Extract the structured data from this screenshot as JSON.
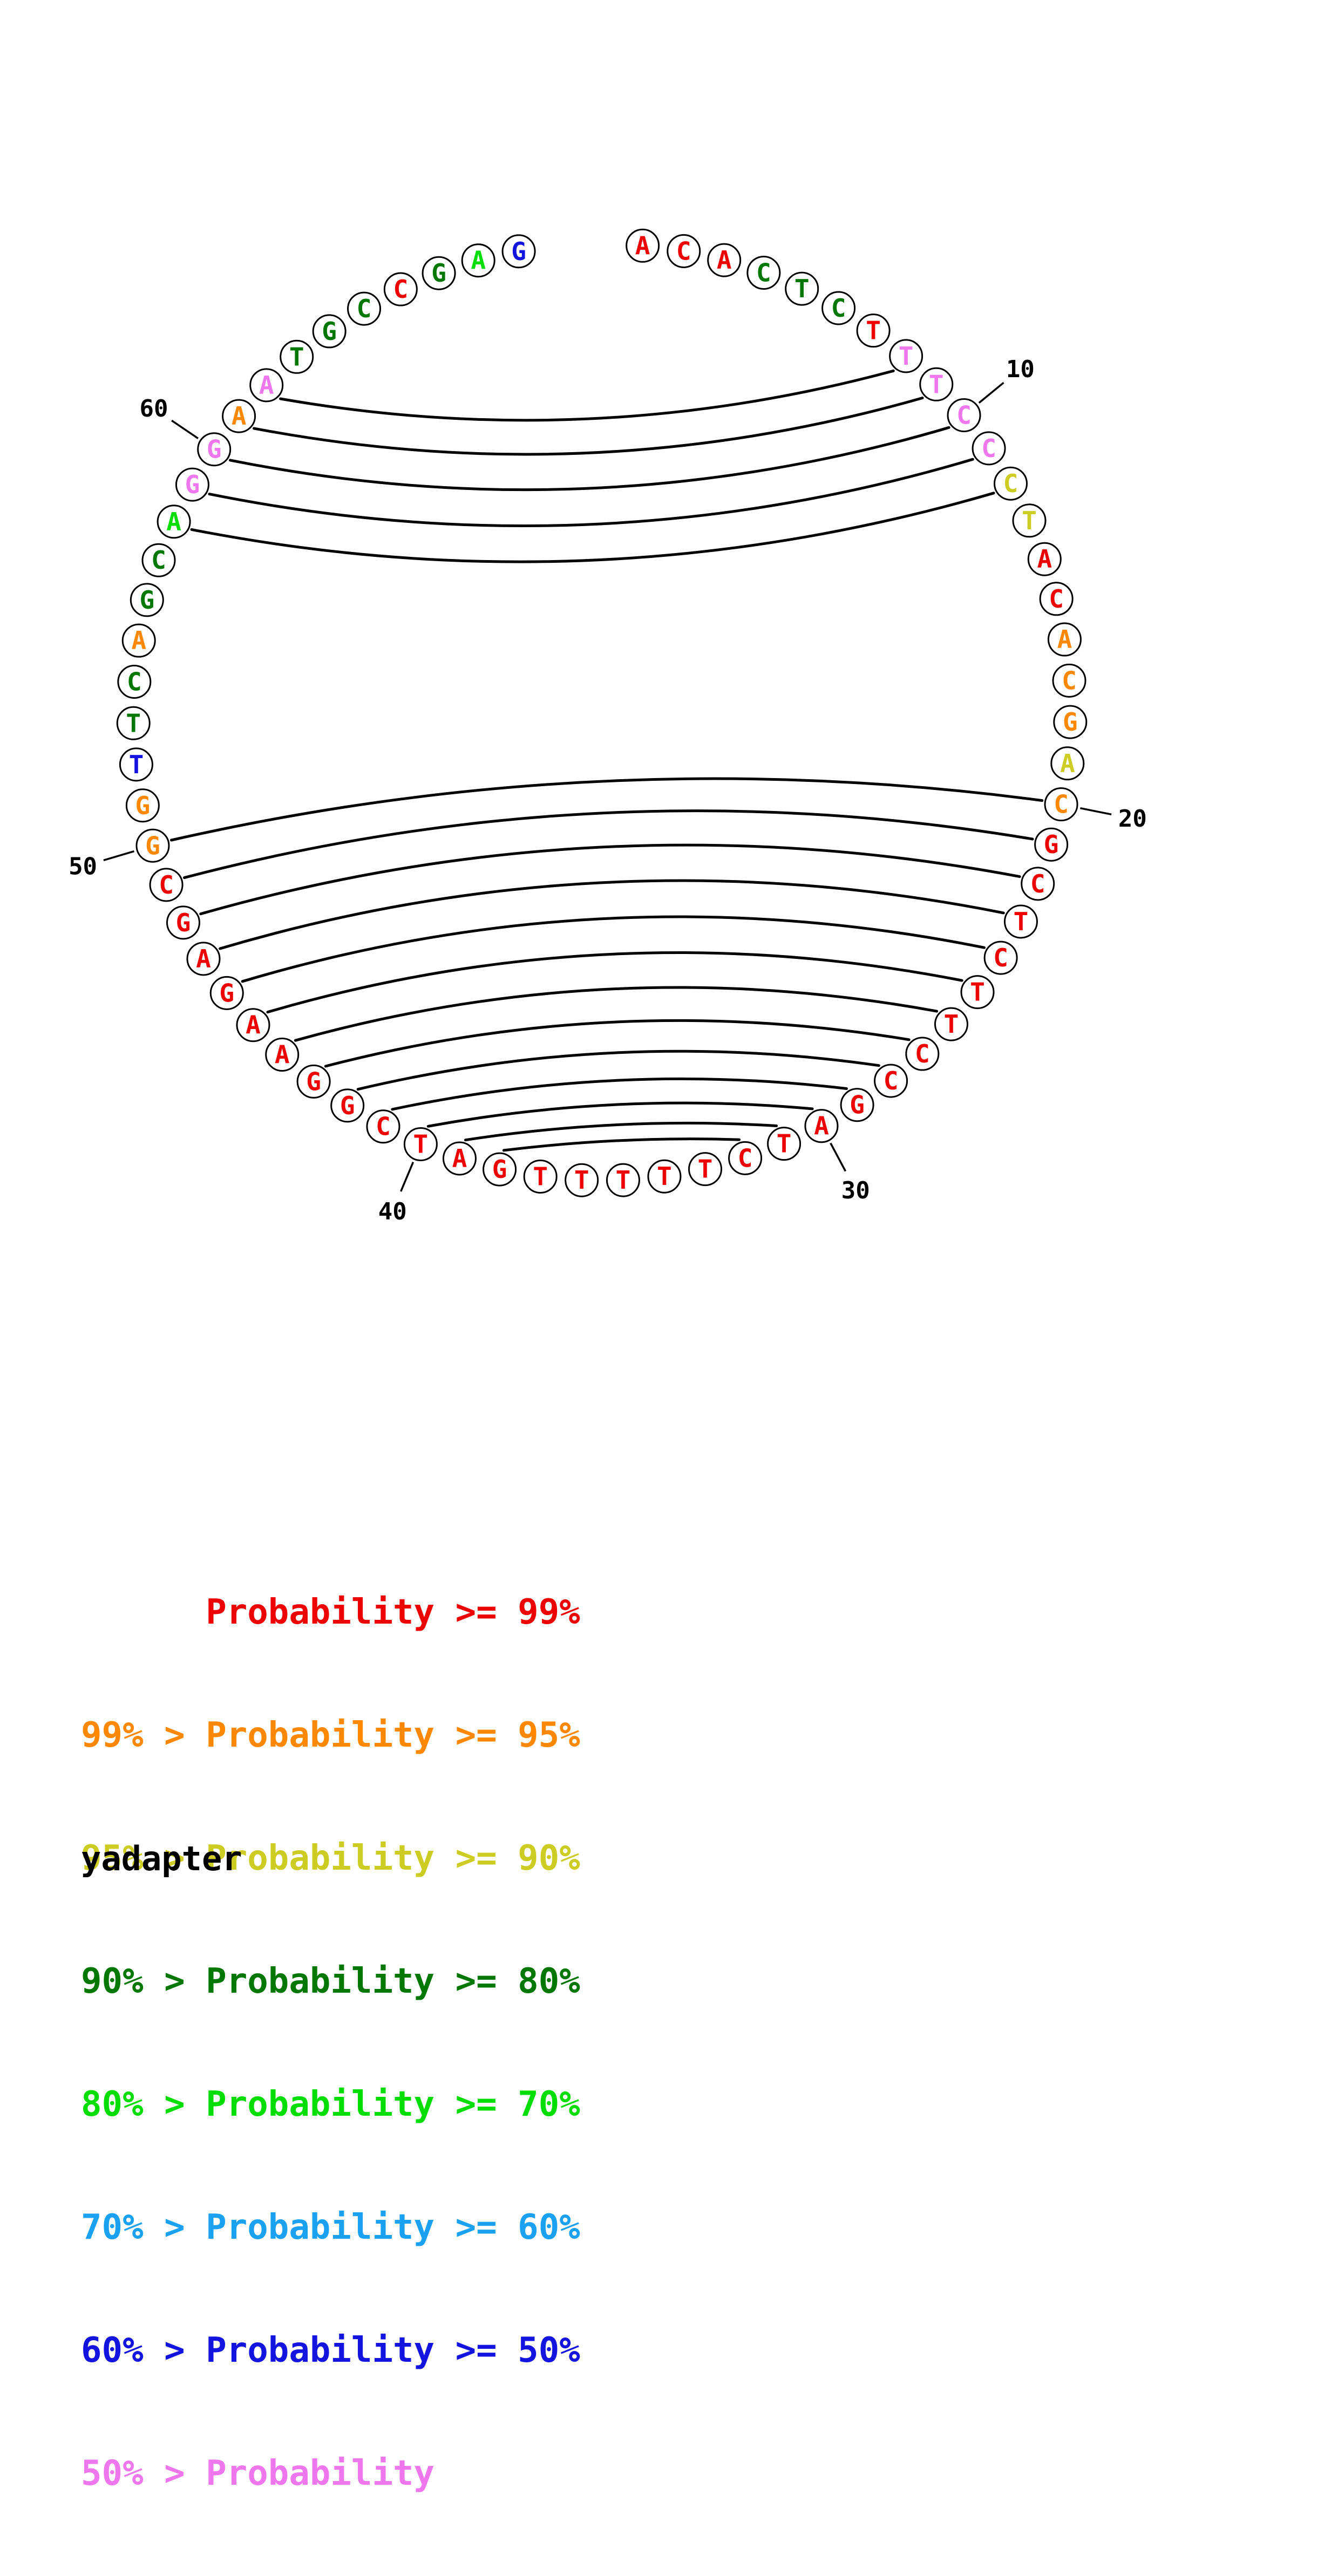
{
  "chart_data": {
    "type": "arc-diagram",
    "title": "yadapter",
    "sequence": "ACACTCTTTCCCTACACGACGCTCTTCCGATCTTTTTGATCGGAAGAGCGGTTCAGCAGGAATGCCGAG",
    "sequence_length": 69,
    "position_labels": [
      10,
      20,
      30,
      40,
      50,
      60
    ],
    "pairs": [
      [
        8,
        62
      ],
      [
        9,
        61
      ],
      [
        10,
        60
      ],
      [
        11,
        59
      ],
      [
        12,
        58
      ],
      [
        20,
        50
      ],
      [
        21,
        49
      ],
      [
        22,
        48
      ],
      [
        23,
        47
      ],
      [
        24,
        46
      ],
      [
        25,
        45
      ],
      [
        26,
        44
      ],
      [
        27,
        43
      ],
      [
        28,
        42
      ],
      [
        29,
        41
      ],
      [
        30,
        40
      ],
      [
        31,
        39
      ],
      [
        32,
        38
      ]
    ],
    "colors": [
      "p99",
      "p99",
      "p99",
      "p80",
      "p80",
      "p80",
      "p99",
      "plow",
      "plow",
      "plow",
      "plow",
      "p90",
      "p90",
      "p99",
      "p99",
      "p95",
      "p95",
      "p95",
      "p90",
      "p95",
      "p99",
      "p99",
      "p99",
      "p99",
      "p99",
      "p99",
      "p99",
      "p99",
      "p99",
      "p99",
      "p99",
      "p99",
      "p99",
      "p99",
      "p99",
      "p99",
      "p99",
      "p99",
      "p99",
      "p99",
      "p99",
      "p99",
      "p99",
      "p99",
      "p99",
      "p99",
      "p99",
      "p99",
      "p99",
      "p95",
      "p95",
      "p50",
      "p80",
      "p80",
      "p95",
      "p80",
      "p80",
      "p70",
      "plow",
      "plow",
      "p95",
      "plow",
      "p80",
      "p80",
      "p80",
      "p99",
      "p80",
      "p70",
      "p50"
    ],
    "legend": [
      {
        "text": "      Probability >= 99%",
        "color": "p99"
      },
      {
        "text": "99% > Probability >= 95%",
        "color": "p95"
      },
      {
        "text": "95% > Probability >= 90%",
        "color": "p90"
      },
      {
        "text": "90% > Probability >= 80%",
        "color": "p80"
      },
      {
        "text": "80% > Probability >= 70%",
        "color": "p70"
      },
      {
        "text": "70% > Probability >= 60%",
        "color": "p60"
      },
      {
        "text": "60% > Probability >= 50%",
        "color": "p50"
      },
      {
        "text": "50% > Probability",
        "color": "plow"
      }
    ]
  },
  "palette": {
    "p99": "#ee0000",
    "p95": "#ff8800",
    "p90": "#cccc22",
    "p80": "#007700",
    "p70": "#00dd00",
    "p60": "#1ba1f2",
    "p50": "#1414e0",
    "plow": "#ee77ee",
    "arc": "#000000",
    "outline": "#000000"
  }
}
